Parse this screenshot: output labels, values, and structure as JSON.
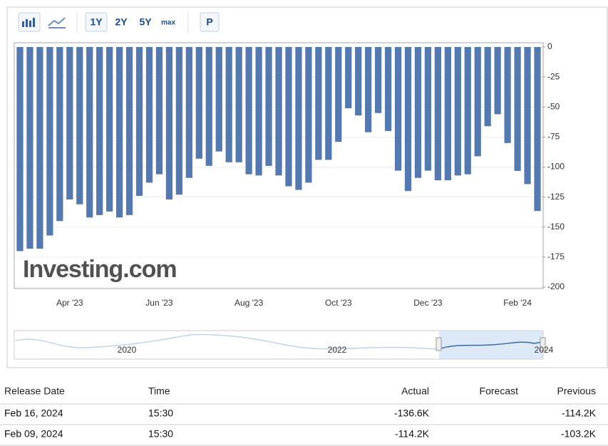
{
  "toolbar": {
    "ranges": [
      "1Y",
      "2Y",
      "5Y",
      "max"
    ],
    "print": "P"
  },
  "chart_data": {
    "type": "bar",
    "watermark": "Investing.com",
    "categories": [
      null,
      null,
      null,
      null,
      null,
      "Apr '23",
      null,
      null,
      null,
      null,
      null,
      null,
      null,
      null,
      "Jun '23",
      null,
      null,
      null,
      null,
      null,
      null,
      null,
      null,
      "Aug '23",
      null,
      null,
      null,
      null,
      null,
      null,
      null,
      null,
      "Oct '23",
      null,
      null,
      null,
      null,
      null,
      null,
      null,
      null,
      "Dec '23",
      null,
      null,
      null,
      null,
      null,
      null,
      null,
      null,
      "Feb '24",
      null,
      null
    ],
    "values": [
      -170,
      -168,
      -168,
      -157,
      -145,
      -127,
      -131,
      -142,
      -140,
      -137,
      -142,
      -140,
      -124,
      -113,
      -106,
      -127,
      -123,
      -109,
      -93,
      -99,
      -87,
      -96,
      -96,
      -106,
      -107,
      -99,
      -107,
      -116,
      -119,
      -113,
      -94,
      -94,
      -79,
      -51,
      -57,
      -71,
      -55,
      -70,
      -103,
      -120,
      -109,
      -103,
      -111,
      -111,
      -107,
      -106,
      -91,
      -66,
      -56,
      -80,
      -103.2,
      -114.2,
      -136.6
    ],
    "color": "#5479b1",
    "ylim": [
      -200,
      0
    ],
    "yticks": [
      0,
      -25,
      -50,
      -75,
      -100,
      -125,
      -150,
      -175,
      -200
    ],
    "grid": true,
    "y_axis_side": "right"
  },
  "navigator": {
    "labels": [
      "2020",
      "2022",
      "2024"
    ]
  },
  "table": {
    "headers": [
      "Release Date",
      "Time",
      "Actual",
      "Forecast",
      "Previous"
    ],
    "rows": [
      {
        "release_date": "Feb 16, 2024",
        "time": "15:30",
        "actual": "-136.6K",
        "previous": "-114.2K"
      },
      {
        "release_date": "Feb 09, 2024",
        "time": "15:30",
        "actual": "-114.2K",
        "previous": "-103.2K"
      }
    ]
  }
}
